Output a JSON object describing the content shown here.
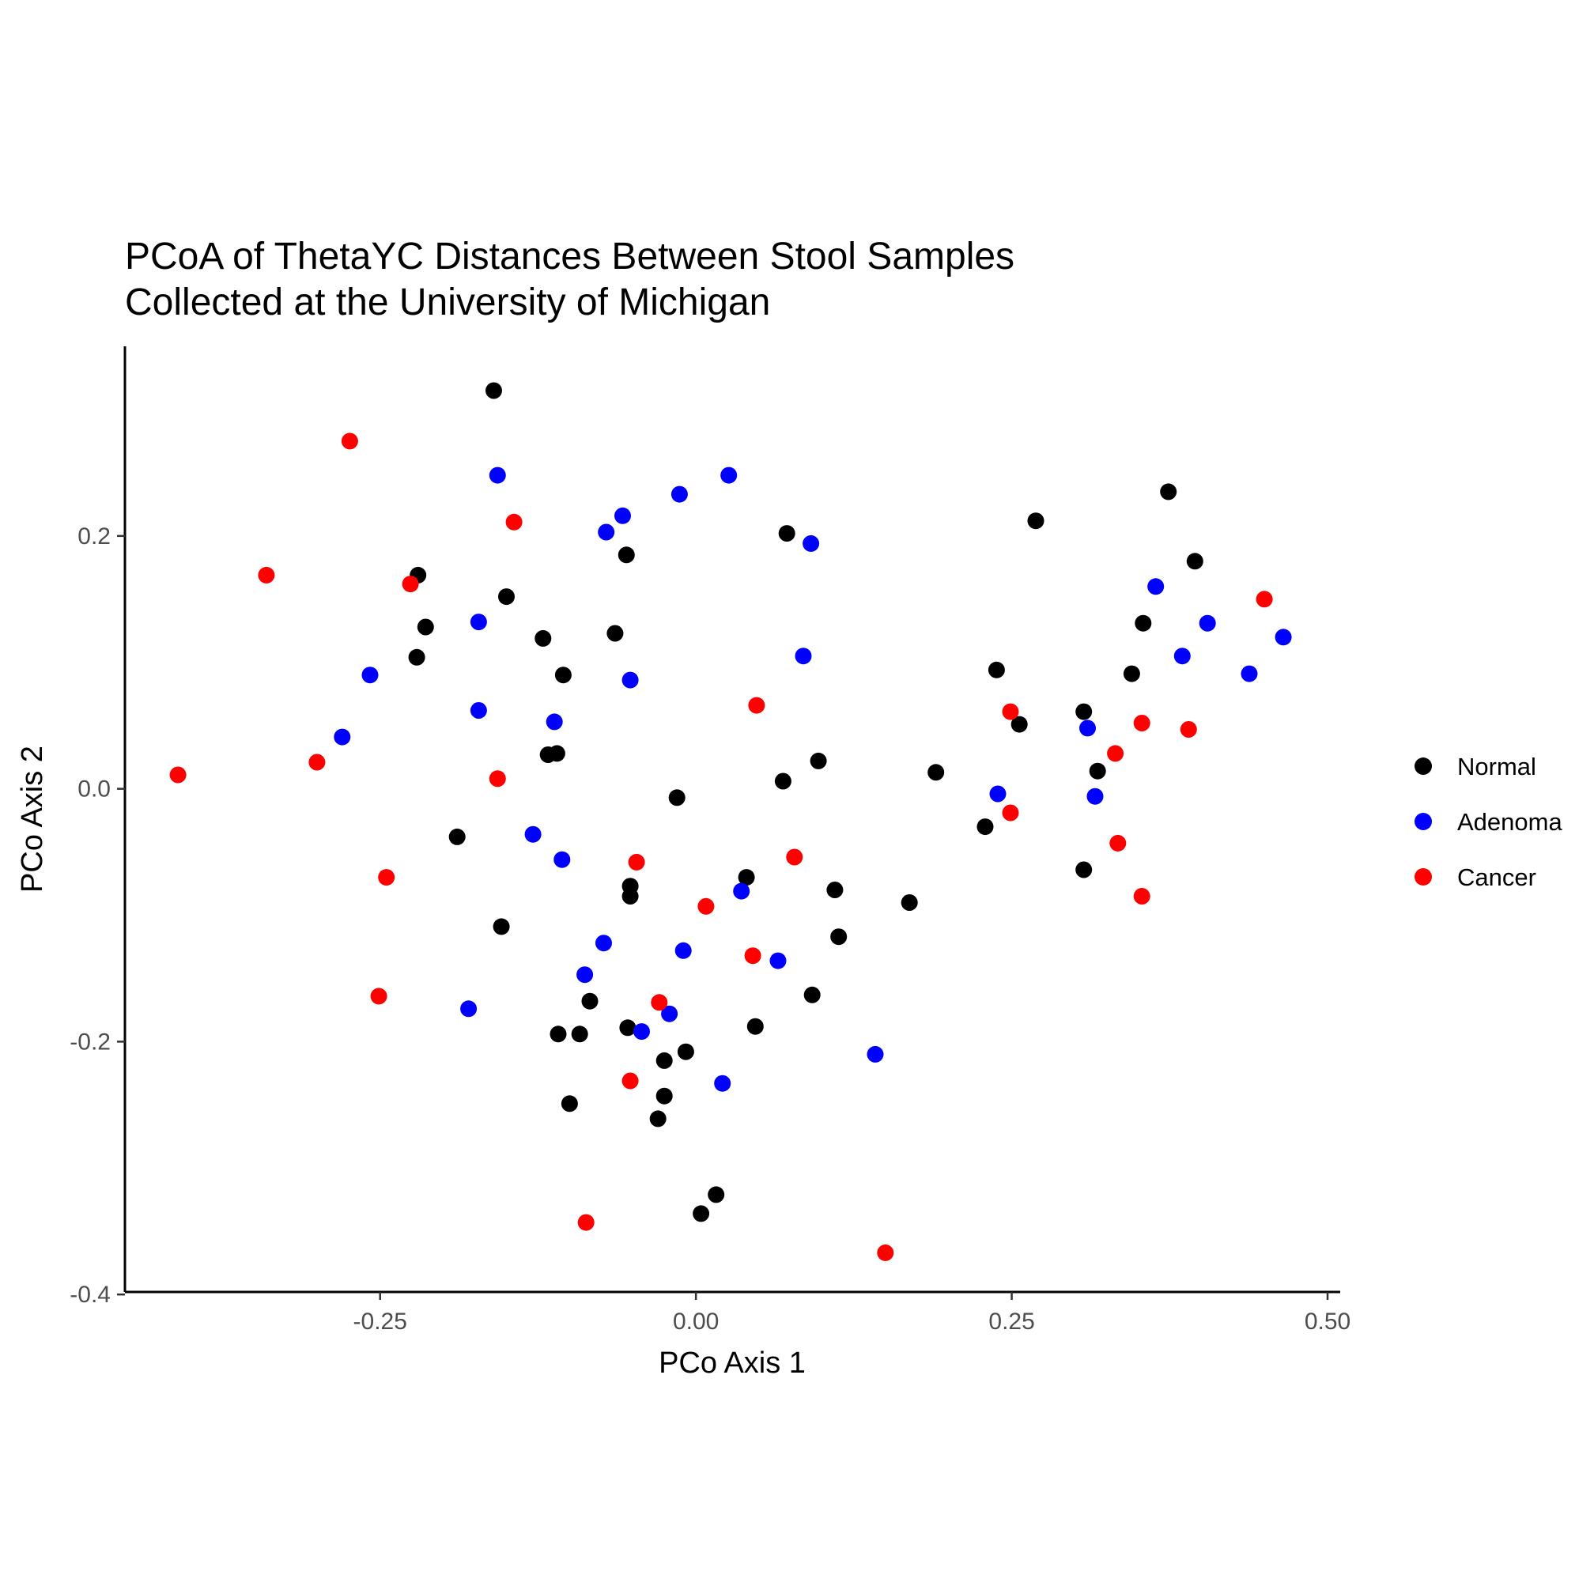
{
  "chart_data": {
    "type": "scatter",
    "title_lines": [
      "PCoA of ThetaYC Distances Between Stool Samples",
      "Collected at the University of Michigan"
    ],
    "xlabel": "PCo Axis 1",
    "ylabel": "PCo Axis 2",
    "xlim": [
      -0.452,
      0.51
    ],
    "ylim": [
      -0.398,
      0.35
    ],
    "x_ticks": [
      -0.25,
      0.0,
      0.25,
      0.5
    ],
    "x_tick_labels": [
      "-0.25",
      "0.00",
      "0.25",
      "0.50"
    ],
    "y_ticks": [
      -0.4,
      -0.2,
      0.0,
      0.2
    ],
    "y_tick_labels": [
      "-0.4",
      "-0.2",
      "0.0",
      "0.2"
    ],
    "grid": false,
    "legend_position": "right",
    "series": [
      {
        "name": "Normal",
        "color": "#000000",
        "points": [
          [
            -0.16,
            0.315
          ],
          [
            0.374,
            0.235
          ],
          [
            0.269,
            0.212
          ],
          [
            0.072,
            0.202
          ],
          [
            -0.055,
            0.185
          ],
          [
            0.395,
            0.18
          ],
          [
            -0.22,
            0.169
          ],
          [
            -0.15,
            0.152
          ],
          [
            0.354,
            0.131
          ],
          [
            -0.214,
            0.128
          ],
          [
            -0.064,
            0.123
          ],
          [
            -0.121,
            0.119
          ],
          [
            -0.221,
            0.104
          ],
          [
            0.238,
            0.094
          ],
          [
            -0.105,
            0.09
          ],
          [
            0.345,
            0.091
          ],
          [
            0.307,
            0.061
          ],
          [
            0.256,
            0.051
          ],
          [
            -0.117,
            0.027
          ],
          [
            -0.11,
            0.028
          ],
          [
            0.097,
            0.022
          ],
          [
            0.19,
            0.013
          ],
          [
            0.318,
            0.014
          ],
          [
            0.069,
            0.006
          ],
          [
            -0.015,
            -0.007
          ],
          [
            0.229,
            -0.03
          ],
          [
            -0.189,
            -0.038
          ],
          [
            0.307,
            -0.064
          ],
          [
            0.04,
            -0.07
          ],
          [
            -0.052,
            -0.077
          ],
          [
            -0.052,
            -0.085
          ],
          [
            0.11,
            -0.08
          ],
          [
            0.169,
            -0.09
          ],
          [
            -0.154,
            -0.109
          ],
          [
            0.113,
            -0.117
          ],
          [
            0.092,
            -0.163
          ],
          [
            -0.084,
            -0.168
          ],
          [
            0.047,
            -0.188
          ],
          [
            -0.054,
            -0.189
          ],
          [
            -0.092,
            -0.194
          ],
          [
            -0.109,
            -0.194
          ],
          [
            -0.008,
            -0.208
          ],
          [
            -0.025,
            -0.215
          ],
          [
            -0.025,
            -0.243
          ],
          [
            -0.1,
            -0.249
          ],
          [
            -0.03,
            -0.261
          ],
          [
            0.016,
            -0.321
          ],
          [
            0.004,
            -0.336
          ]
        ]
      },
      {
        "name": "Adenoma",
        "color": "#0000ff",
        "points": [
          [
            -0.157,
            0.248
          ],
          [
            0.026,
            0.248
          ],
          [
            -0.013,
            0.233
          ],
          [
            -0.058,
            0.216
          ],
          [
            -0.071,
            0.203
          ],
          [
            0.091,
            0.194
          ],
          [
            0.364,
            0.16
          ],
          [
            -0.172,
            0.132
          ],
          [
            0.405,
            0.131
          ],
          [
            0.465,
            0.12
          ],
          [
            0.085,
            0.105
          ],
          [
            0.385,
            0.105
          ],
          [
            -0.258,
            0.09
          ],
          [
            0.438,
            0.091
          ],
          [
            -0.052,
            0.086
          ],
          [
            -0.172,
            0.062
          ],
          [
            -0.112,
            0.053
          ],
          [
            0.31,
            0.048
          ],
          [
            -0.28,
            0.041
          ],
          [
            0.239,
            -0.004
          ],
          [
            0.316,
            -0.006
          ],
          [
            -0.129,
            -0.036
          ],
          [
            -0.106,
            -0.056
          ],
          [
            0.036,
            -0.081
          ],
          [
            -0.073,
            -0.122
          ],
          [
            -0.01,
            -0.128
          ],
          [
            0.065,
            -0.136
          ],
          [
            -0.088,
            -0.147
          ],
          [
            -0.18,
            -0.174
          ],
          [
            -0.021,
            -0.178
          ],
          [
            -0.043,
            -0.192
          ],
          [
            0.142,
            -0.21
          ],
          [
            0.021,
            -0.233
          ]
        ]
      },
      {
        "name": "Cancer",
        "color": "#ff0000",
        "points": [
          [
            -0.274,
            0.275
          ],
          [
            -0.144,
            0.211
          ],
          [
            -0.34,
            0.169
          ],
          [
            -0.226,
            0.162
          ],
          [
            0.45,
            0.15
          ],
          [
            0.048,
            0.066
          ],
          [
            0.249,
            0.061
          ],
          [
            0.353,
            0.052
          ],
          [
            0.39,
            0.047
          ],
          [
            0.332,
            0.028
          ],
          [
            -0.3,
            0.021
          ],
          [
            -0.41,
            0.011
          ],
          [
            -0.157,
            0.008
          ],
          [
            0.249,
            -0.019
          ],
          [
            0.334,
            -0.043
          ],
          [
            0.078,
            -0.054
          ],
          [
            -0.047,
            -0.058
          ],
          [
            -0.245,
            -0.07
          ],
          [
            0.353,
            -0.085
          ],
          [
            0.008,
            -0.093
          ],
          [
            0.045,
            -0.132
          ],
          [
            -0.251,
            -0.164
          ],
          [
            -0.029,
            -0.169
          ],
          [
            -0.052,
            -0.231
          ],
          [
            -0.087,
            -0.343
          ],
          [
            0.15,
            -0.367
          ]
        ]
      }
    ]
  }
}
